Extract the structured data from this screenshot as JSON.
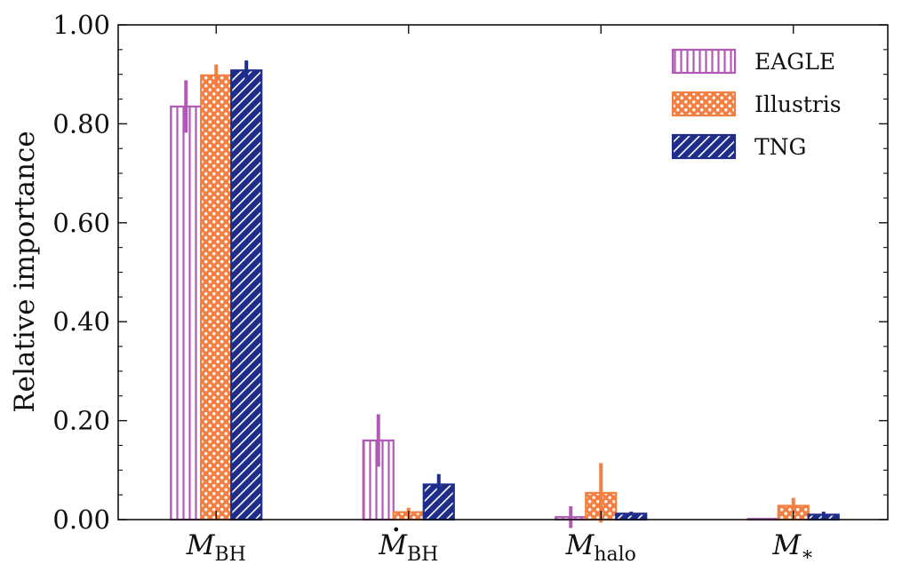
{
  "chart_data": {
    "type": "bar",
    "ylabel": "Relative importance",
    "ylim": [
      0,
      1.0
    ],
    "yticks": [
      "0.00",
      "0.20",
      "0.40",
      "0.60",
      "0.80",
      "1.00"
    ],
    "categories": [
      {
        "main": "M",
        "sub": "BH",
        "dot": false
      },
      {
        "main": "M",
        "sub": "BH",
        "dot": true
      },
      {
        "main": "M",
        "sub": "halo",
        "dot": false
      },
      {
        "main": "M",
        "sub": "∗",
        "dot": false
      }
    ],
    "series": [
      {
        "name": "EAGLE",
        "color": "#b05ab5",
        "pattern": "vertical",
        "values": [
          0.835,
          0.16,
          0.005,
          0.001
        ],
        "errors": [
          0.053,
          0.053,
          0.022,
          0.0
        ]
      },
      {
        "name": "Illustris",
        "color": "#f47f42",
        "pattern": "dots",
        "values": [
          0.898,
          0.015,
          0.054,
          0.028
        ],
        "errors": [
          0.022,
          0.009,
          0.06,
          0.016
        ]
      },
      {
        "name": "TNG",
        "color": "#1f2d8a",
        "pattern": "diagonal",
        "values": [
          0.908,
          0.071,
          0.012,
          0.01
        ],
        "errors": [
          0.02,
          0.021,
          0.004,
          0.006
        ]
      }
    ],
    "legend_position": "top-right",
    "grid": false
  }
}
